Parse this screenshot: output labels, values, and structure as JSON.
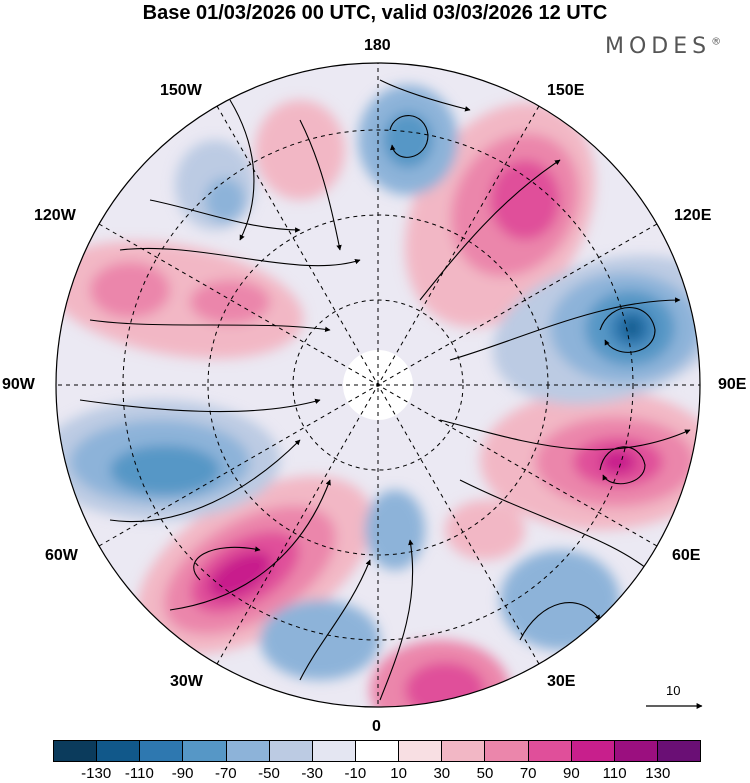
{
  "title": "Base 01/03/2026 00 UTC, valid 03/03/2026 12 UTC",
  "brand": "MODES",
  "brand_mark": "®",
  "longitude_labels": {
    "top": "180",
    "bottom": "0",
    "left": "90W",
    "right": "90E",
    "upper_left_1": "150W",
    "upper_left_2": "120W",
    "lower_left_1": "60W",
    "lower_left_2": "30W",
    "upper_right_1": "150E",
    "upper_right_2": "120E",
    "lower_right_1": "60E",
    "lower_right_2": "30E"
  },
  "reference_vector": "10",
  "colorbar": {
    "colors": [
      "#0b3b5c",
      "#11588a",
      "#2e78b0",
      "#5697c6",
      "#8db3d9",
      "#bccbe3",
      "#e4e6f2",
      "#ffffff",
      "#f8dfe3",
      "#f2b7c5",
      "#eb86ab",
      "#e04f9a",
      "#c81f8c",
      "#9b0f7f",
      "#6a0f75"
    ],
    "ticks": [
      "-130",
      "-110",
      "-90",
      "-70",
      "-50",
      "-30",
      "-10",
      "10",
      "30",
      "50",
      "70",
      "90",
      "110",
      "130"
    ]
  },
  "anomaly_centers": [
    {
      "name": "positive-siberia",
      "sign": "+",
      "value": 110
    },
    {
      "name": "negative-east-siberia",
      "sign": "-",
      "value": -110
    },
    {
      "name": "positive-kamchatka",
      "sign": "+",
      "value": 90
    },
    {
      "name": "positive-north-atlantic",
      "sign": "+",
      "value": 110
    },
    {
      "name": "negative-canada",
      "sign": "-",
      "value": -90
    },
    {
      "name": "positive-north-pacific",
      "sign": "+",
      "value": 50
    }
  ]
}
